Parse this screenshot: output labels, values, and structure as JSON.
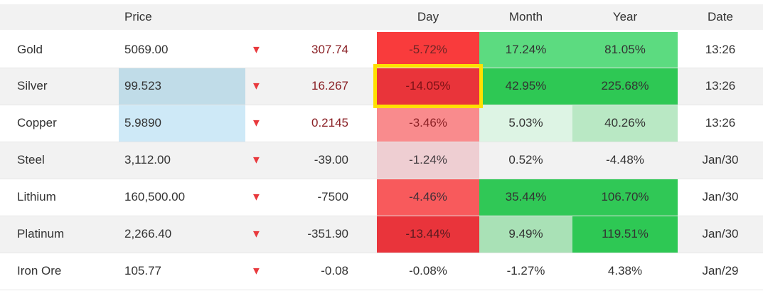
{
  "table": {
    "headers": {
      "name": "",
      "price": "Price",
      "change": "",
      "day": "Day",
      "month": "Month",
      "year": "Year",
      "date": "Date"
    },
    "icons": {
      "down_arrow": "▼"
    },
    "colors": {
      "triangle_red": "#e8393d",
      "change_maroon": "#8a2025",
      "header_bg": "#f2f2f2",
      "stripe_bg": "#f2f2f2",
      "highlight_yellow": "#ffe000"
    },
    "rows": [
      {
        "name": "Gold",
        "price": "5069.00",
        "change": "307.74",
        "change_color": "#8a2025",
        "day": "-5.72%",
        "day_bg": "#f93b3c",
        "day_fg": "#6f2626",
        "month": "17.24%",
        "month_bg": "#5cdb80",
        "year": "81.05%",
        "year_bg": "#5cdb80",
        "date": "13:26"
      },
      {
        "name": "Silver",
        "price": "99.523",
        "price_bg": "#c0dce8",
        "change": "16.267",
        "change_color": "#8a2025",
        "day": "-14.05%",
        "day_bg": "#e9343a",
        "day_fg": "#7a1216",
        "month": "42.95%",
        "month_bg": "#2ec854",
        "year": "225.68%",
        "year_bg": "#2ec854",
        "date": "13:26"
      },
      {
        "name": "Copper",
        "price": "5.9890",
        "price_bg": "#cee9f7",
        "change": "0.2145",
        "change_color": "#8a2025",
        "day": "-3.46%",
        "day_bg": "#f98b8d",
        "day_fg": "#8d2226",
        "month": "5.03%",
        "month_bg": "#ddf4e4",
        "year": "40.26%",
        "year_bg": "#b9e8c4",
        "date": "13:26"
      },
      {
        "name": "Steel",
        "price": "3,112.00",
        "change": "-39.00",
        "day": "-1.24%",
        "day_bg": "#eeced2",
        "day_fg": "#433c40",
        "month": "0.52%",
        "year": "-4.48%",
        "date": "Jan/30"
      },
      {
        "name": "Lithium",
        "price": "160,500.00",
        "change": "-7500",
        "day": "-4.46%",
        "day_bg": "#f85a5c",
        "day_fg": "#433038",
        "month": "35.44%",
        "month_bg": "#30c856",
        "year": "106.70%",
        "year_bg": "#30c856",
        "date": "Jan/30"
      },
      {
        "name": "Platinum",
        "price": "2,266.40",
        "change": "-351.90",
        "day": "-13.44%",
        "day_bg": "#e9343b",
        "day_fg": "#581a1f",
        "month": "9.49%",
        "month_bg": "#a9e1b6",
        "year": "119.51%",
        "year_bg": "#2ec854",
        "date": "Jan/30"
      },
      {
        "name": "Iron Ore",
        "price": "105.77",
        "change": "-0.08",
        "day": "-0.08%",
        "month": "-1.27%",
        "year": "4.38%",
        "date": "Jan/29"
      }
    ]
  }
}
